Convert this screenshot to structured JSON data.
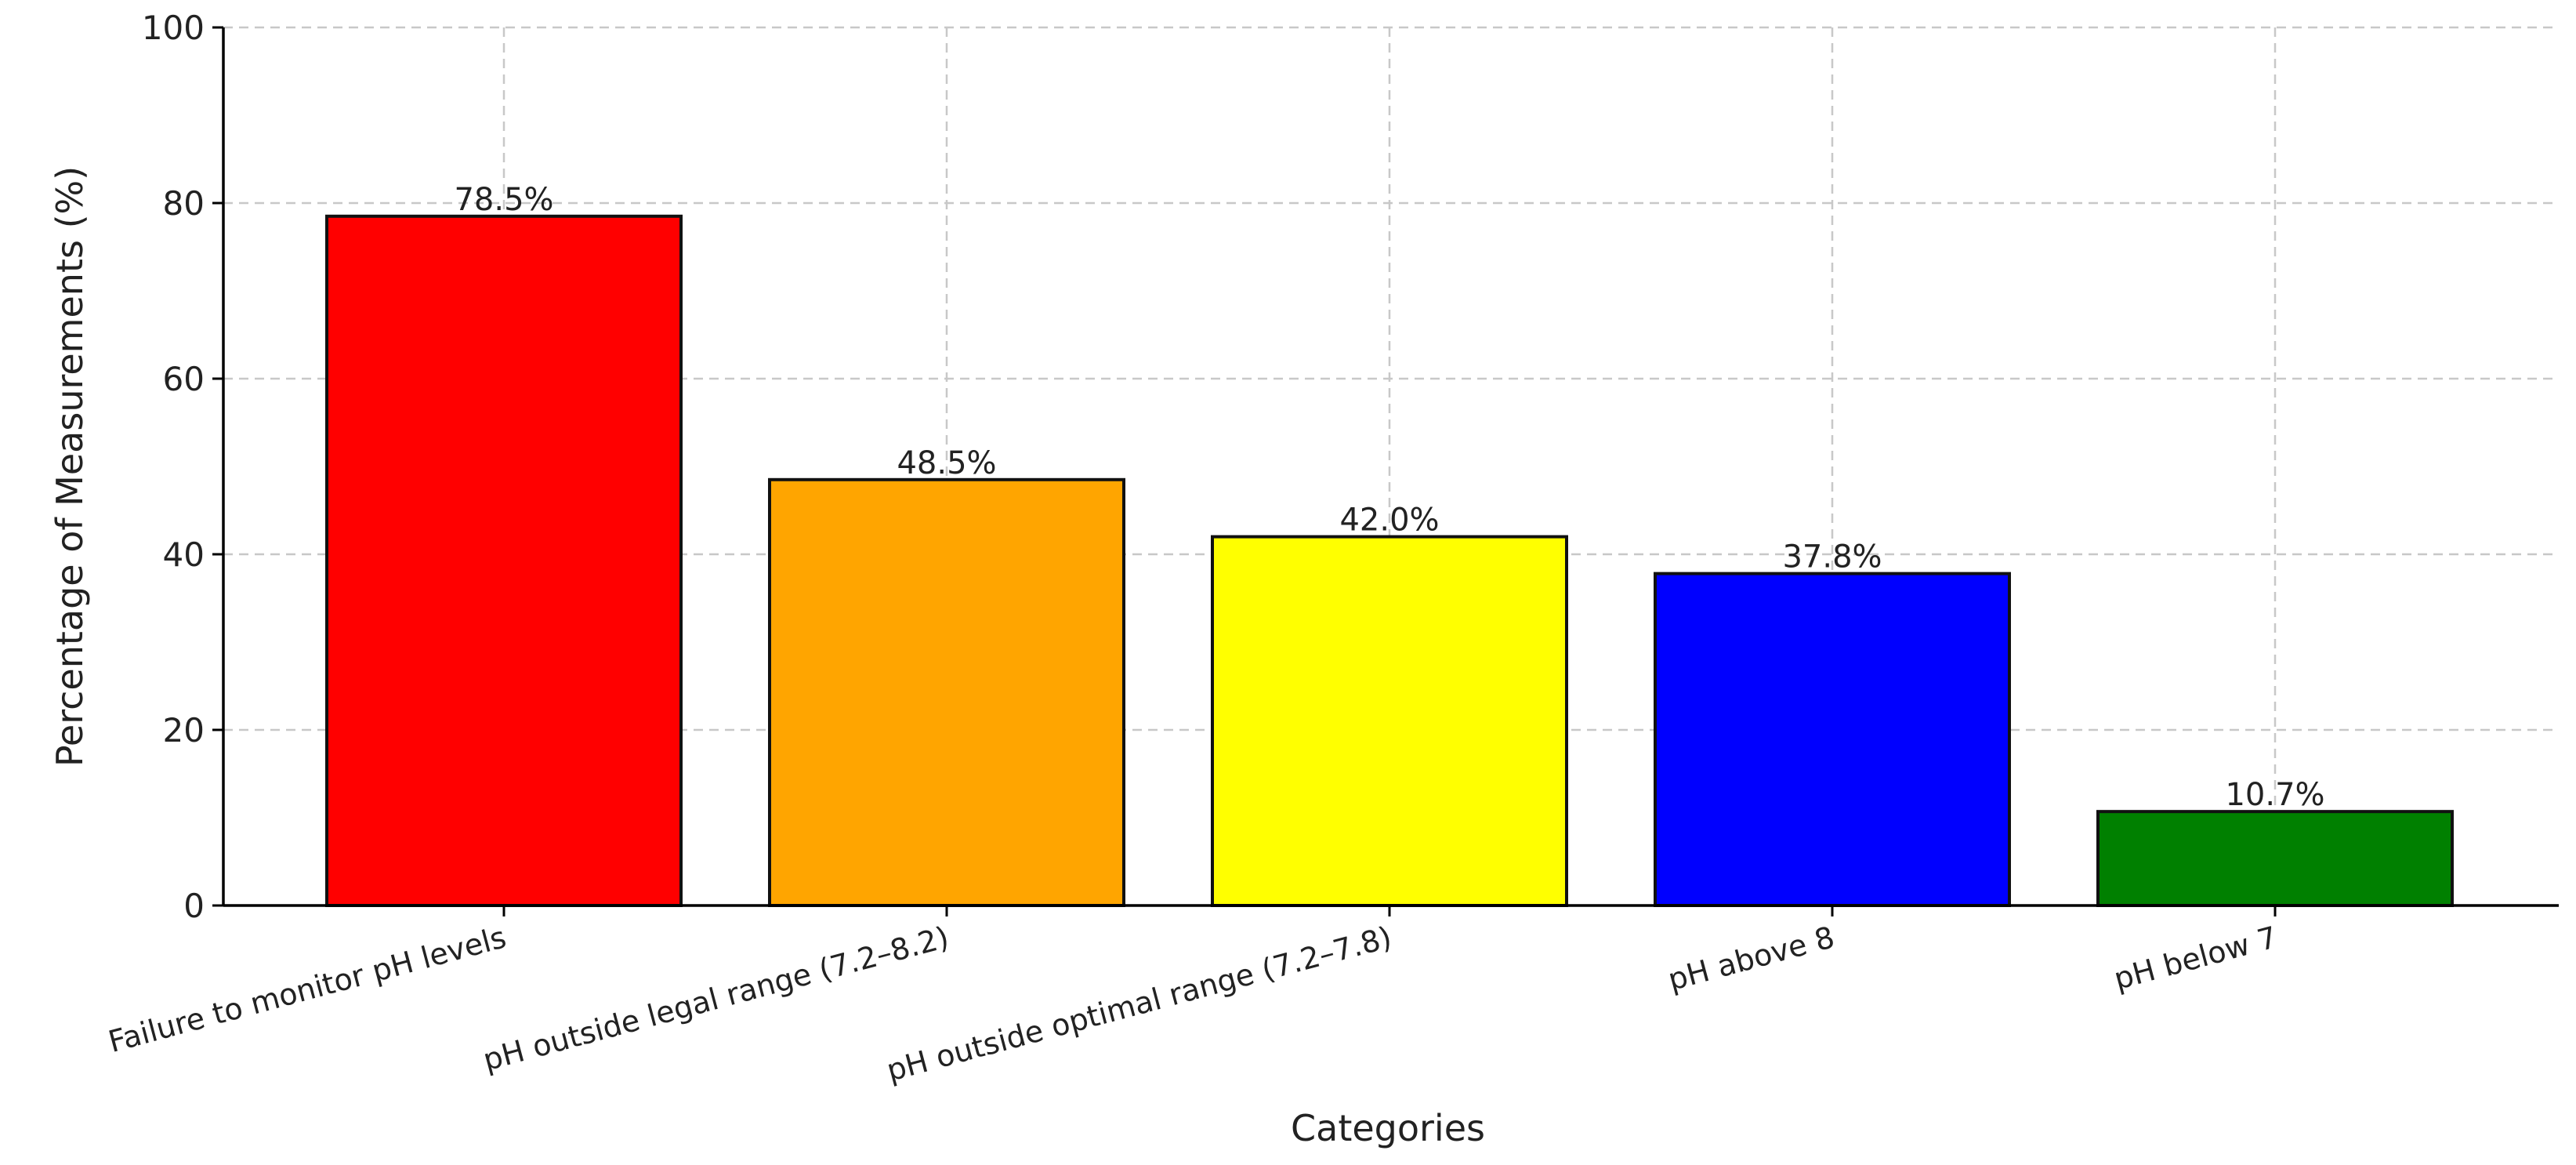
{
  "chart_data": {
    "type": "bar",
    "title": "",
    "xlabel": "Categories",
    "ylabel": "Percentage of Measurements (%)",
    "ylim": [
      0,
      100
    ],
    "yticks": [
      0,
      20,
      40,
      60,
      80,
      100
    ],
    "grid": true,
    "categories": [
      "Failure to monitor pH levels",
      "pH outside legal range (7.2–8.2)",
      "pH outside optimal range (7.2–7.8)",
      "pH above 8",
      "pH below 7"
    ],
    "values": [
      78.5,
      48.5,
      42.0,
      37.8,
      10.7
    ],
    "data_labels": [
      "78.5%",
      "48.5%",
      "42.0%",
      "37.8%",
      "10.7%"
    ],
    "colors": [
      "#ff0000",
      "#ffa500",
      "#ffff00",
      "#0000ff",
      "#008000"
    ]
  }
}
